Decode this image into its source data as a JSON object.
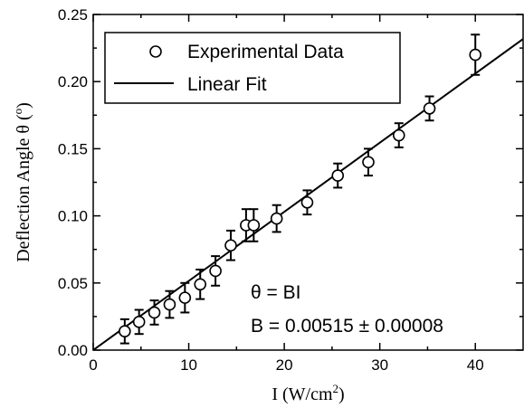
{
  "chart_data": {
    "type": "scatter",
    "xlabel": "I (W/cm",
    "xlabel_sup": "2",
    "xlabel_close": ")",
    "ylabel": "Deflection Angle θ (",
    "ylabel_sup": "o",
    "ylabel_close": ")",
    "xlim": [
      0,
      45
    ],
    "ylim": [
      0,
      0.25
    ],
    "x_ticks": [
      0,
      10,
      20,
      30,
      40
    ],
    "x_tick_labels": [
      "0",
      "10",
      "20",
      "30",
      "40"
    ],
    "y_ticks": [
      0,
      0.05,
      0.1,
      0.15,
      0.2,
      0.25
    ],
    "y_tick_labels": [
      "0.00",
      "0.05",
      "0.10",
      "0.15",
      "0.20",
      "0.25"
    ],
    "grid": false,
    "legend_position": "top-left",
    "series": [
      {
        "name": "Experimental Data",
        "kind": "points-with-errorbars",
        "points": [
          {
            "x": 3.3,
            "y": 0.014,
            "err": 0.009
          },
          {
            "x": 4.8,
            "y": 0.021,
            "err": 0.009
          },
          {
            "x": 6.4,
            "y": 0.028,
            "err": 0.009
          },
          {
            "x": 8.0,
            "y": 0.034,
            "err": 0.01
          },
          {
            "x": 9.6,
            "y": 0.039,
            "err": 0.011
          },
          {
            "x": 11.2,
            "y": 0.049,
            "err": 0.011
          },
          {
            "x": 12.8,
            "y": 0.059,
            "err": 0.011
          },
          {
            "x": 14.4,
            "y": 0.078,
            "err": 0.011
          },
          {
            "x": 16.0,
            "y": 0.093,
            "err": 0.012
          },
          {
            "x": 16.8,
            "y": 0.093,
            "err": 0.012
          },
          {
            "x": 19.2,
            "y": 0.098,
            "err": 0.01
          },
          {
            "x": 22.4,
            "y": 0.11,
            "err": 0.009
          },
          {
            "x": 25.6,
            "y": 0.13,
            "err": 0.009
          },
          {
            "x": 28.8,
            "y": 0.14,
            "err": 0.01
          },
          {
            "x": 32.0,
            "y": 0.16,
            "err": 0.009
          },
          {
            "x": 35.2,
            "y": 0.18,
            "err": 0.009
          },
          {
            "x": 40.0,
            "y": 0.22,
            "err": 0.015
          }
        ]
      },
      {
        "name": "Linear Fit",
        "kind": "line",
        "slope": 0.00515
      }
    ],
    "annotations": [
      {
        "text": "θ = BI"
      },
      {
        "text": "B = 0.00515 ± 0.00008"
      }
    ]
  }
}
